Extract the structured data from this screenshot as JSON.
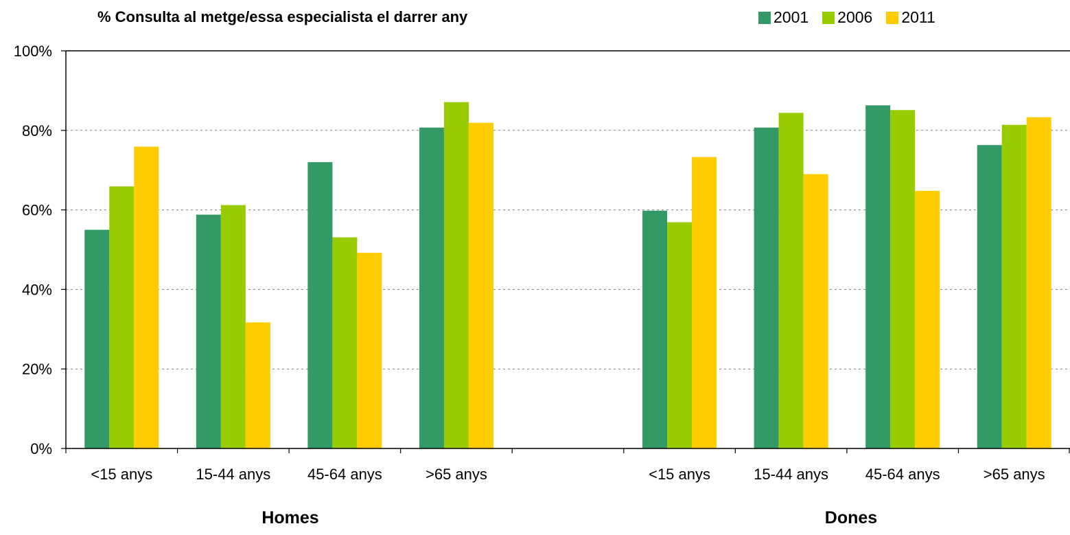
{
  "chart_data": {
    "type": "bar",
    "title": "% Consulta al metge/essa especialista el darrer any",
    "categories": [
      "<15 anys",
      "15-44 anys",
      "45-64 anys",
      ">65 anys",
      "",
      "<15 anys",
      "15-44 anys",
      "45-64 anys",
      ">65 anys"
    ],
    "groups": [
      {
        "label": "Homes",
        "categories": [
          "<15 anys",
          "15-44 anys",
          "45-64 anys",
          ">65 anys"
        ]
      },
      {
        "label": "Dones",
        "categories": [
          "<15 anys",
          "15-44 anys",
          "45-64 anys",
          ">65 anys"
        ]
      }
    ],
    "series": [
      {
        "name": "2001",
        "color": "#339966",
        "values": [
          55,
          58.8,
          72,
          80.7,
          null,
          59.8,
          80.7,
          86.3,
          76.3
        ]
      },
      {
        "name": "2006",
        "color": "#99CC00",
        "values": [
          65.9,
          61.2,
          53.1,
          87.1,
          null,
          56.9,
          84.4,
          85.1,
          81.4
        ]
      },
      {
        "name": "2011",
        "color": "#FFCC00",
        "values": [
          75.9,
          31.7,
          49.2,
          81.9,
          null,
          73.3,
          69.0,
          64.8,
          83.3
        ]
      }
    ],
    "ylim": [
      0,
      100
    ],
    "yticks": [
      "0%",
      "20%",
      "40%",
      "60%",
      "80%",
      "100%"
    ],
    "grid": true,
    "legend_position": "top-right"
  }
}
